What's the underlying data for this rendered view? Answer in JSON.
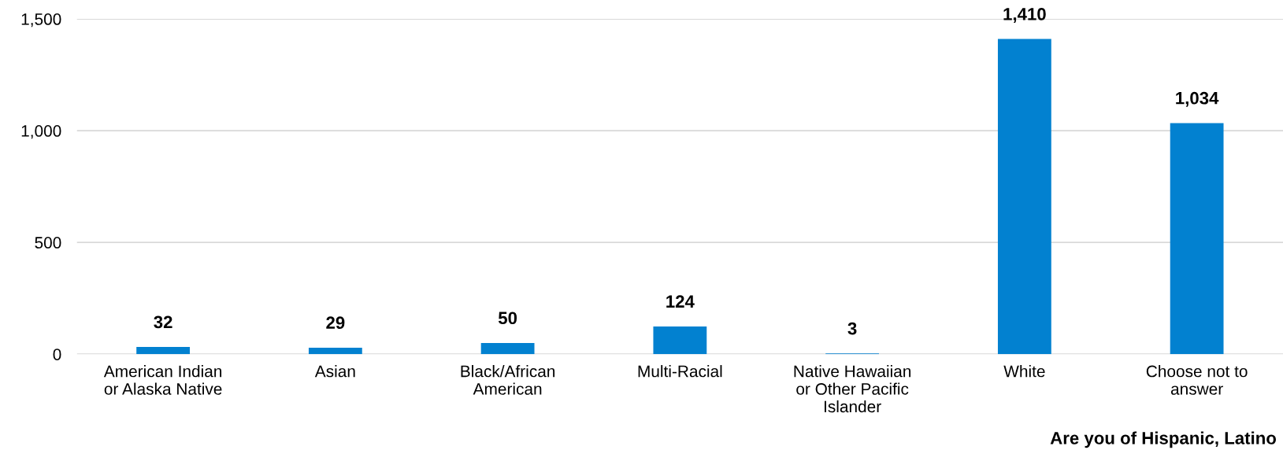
{
  "chart_data": {
    "type": "bar",
    "categories": [
      "American Indian\nor Alaska Native",
      "Asian",
      "Black/African\nAmerican",
      "Multi-Racial",
      "Native Hawaiian\nor Other Pacific\nIslander",
      "White",
      "Choose not to\nanswer"
    ],
    "values": [
      32,
      29,
      50,
      124,
      3,
      1410,
      1034
    ],
    "color": "#0281d0",
    "ylim": [
      0,
      1500
    ],
    "yticks": [
      {
        "value": 0,
        "label": "0"
      },
      {
        "value": 500,
        "label": "500"
      },
      {
        "value": 1000,
        "label": "1,000"
      },
      {
        "value": 1500,
        "label": "1,500"
      }
    ],
    "value_labels": [
      "32",
      "29",
      "50",
      "124",
      "3",
      "1,410",
      "1,034"
    ],
    "grid": "y",
    "annotations": [
      "Are you of Hispanic, Latino"
    ]
  }
}
